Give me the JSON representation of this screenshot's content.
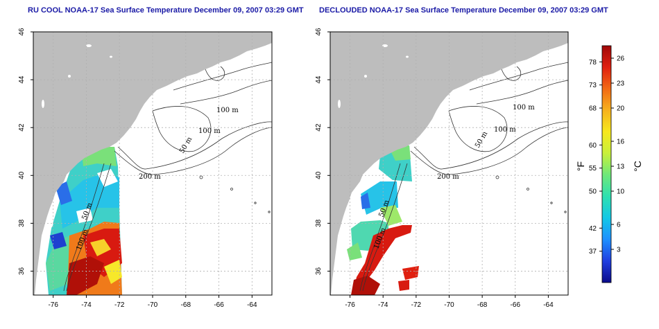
{
  "titles": {
    "left": "RU COOL NOAA-17 Sea Surface Temperature December 09, 2007 03:29 GMT",
    "right": "DECLOUDED NOAA-17 Sea Surface Temperature December 09, 2007 03:29 GMT"
  },
  "maps": {
    "lon_range": [
      -77.2,
      -62.8
    ],
    "lat_range": [
      35.0,
      46.0
    ],
    "x_ticks": [
      -76,
      -74,
      -72,
      -70,
      -68,
      -66,
      -64
    ],
    "x_tick_labels": [
      "-76",
      "-74",
      "-72",
      "-70",
      "-68",
      "-66",
      "-64"
    ],
    "y_ticks": [
      36,
      38,
      40,
      42,
      44,
      46
    ],
    "y_tick_labels": [
      "36",
      "38",
      "40",
      "42",
      "44",
      "46"
    ],
    "contour_labels": [
      "100 m",
      "100 m",
      "50 m",
      "200 m",
      "50 m",
      "100 m"
    ]
  },
  "colorbar": {
    "fahrenheit_ticks": [
      37,
      42,
      50,
      55,
      60,
      68,
      73,
      78
    ],
    "fahrenheit_labels": [
      "37",
      "42",
      "50",
      "55",
      "60",
      "68",
      "73",
      "78"
    ],
    "celsius_ticks": [
      3,
      6,
      10,
      13,
      16,
      20,
      23,
      26
    ],
    "celsius_labels": [
      "3",
      "6",
      "10",
      "13",
      "16",
      "20",
      "23",
      "26"
    ],
    "range_c": [
      -1,
      27.5
    ],
    "unit_f": "°F",
    "unit_c": "°C",
    "gradient": [
      "#0b0b8a",
      "#1f3ee0",
      "#1e90ff",
      "#14c8e6",
      "#2ee0b0",
      "#6ee87a",
      "#c8f03c",
      "#f7e81e",
      "#f7b21e",
      "#f26a14",
      "#e02010",
      "#a00808"
    ]
  },
  "colors": {
    "land": "#bdbdbd",
    "ocean": "#ffffff",
    "grid": "#b0b0b0",
    "title": "#1a1aa6"
  }
}
